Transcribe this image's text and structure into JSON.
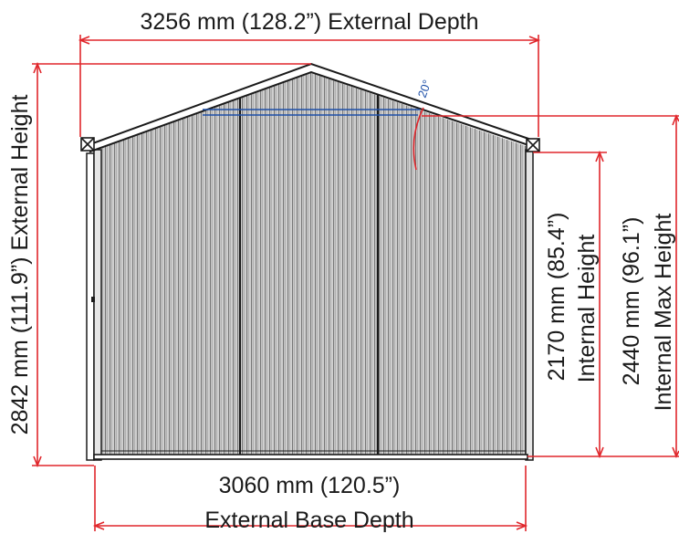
{
  "dimensions": {
    "external_depth": "3256 mm (128.2”) External  Depth",
    "external_height": "2842 mm (111.9”)  External Height",
    "internal_height_value": "2170 mm (85.4”)",
    "internal_height_label": "Internal Height",
    "internal_max_height_value": "2440 mm (96.1”)",
    "internal_max_height_label": "Internal Max Height",
    "external_base_depth_value": "3060 mm (120.5”)",
    "external_base_depth_label": "External Base Depth",
    "roof_angle": "20°"
  },
  "colors": {
    "dimension_line": "#e0262b",
    "angle_line": "#1d4fa8",
    "outline": "#1a1a1a",
    "panel_fill": "#c4c4c4",
    "panel_rib": "#7a7a7a"
  }
}
